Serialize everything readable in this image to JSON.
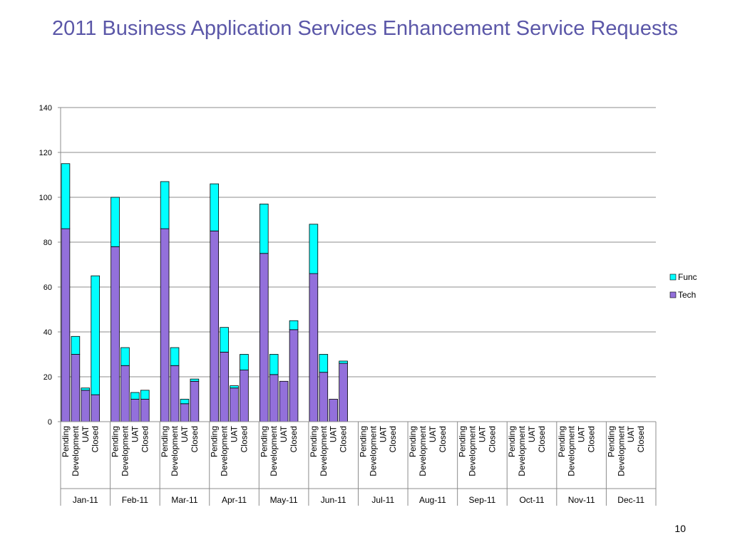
{
  "slide": {
    "title": "2011 Business Application Services Enhancement Service Requests",
    "page_number": "10"
  },
  "colors": {
    "func": "#00ffff",
    "tech": "#9370db"
  },
  "chart_data": {
    "type": "bar",
    "stacked": true,
    "title": "",
    "xlabel": "",
    "ylabel": "",
    "ylim": [
      0,
      140
    ],
    "yticks": [
      0,
      20,
      40,
      60,
      80,
      100,
      120,
      140
    ],
    "grid": true,
    "legend": "right",
    "group_categories": [
      "Jan-11",
      "Feb-11",
      "Mar-11",
      "Apr-11",
      "May-11",
      "Jun-11",
      "Jul-11",
      "Aug-11",
      "Sep-11",
      "Oct-11",
      "Nov-11",
      "Dec-11"
    ],
    "sub_categories": [
      "Pending",
      "Development",
      "UAT",
      "Closed"
    ],
    "series": [
      {
        "name": "Tech",
        "values": [
          [
            86,
            30,
            14,
            12
          ],
          [
            78,
            25,
            10,
            10
          ],
          [
            86,
            25,
            8,
            18
          ],
          [
            85,
            31,
            15,
            23
          ],
          [
            75,
            21,
            18,
            41
          ],
          [
            66,
            22,
            10,
            26
          ],
          [
            0,
            0,
            0,
            0
          ],
          [
            0,
            0,
            0,
            0
          ],
          [
            0,
            0,
            0,
            0
          ],
          [
            0,
            0,
            0,
            0
          ],
          [
            0,
            0,
            0,
            0
          ],
          [
            0,
            0,
            0,
            0
          ]
        ]
      },
      {
        "name": "Func",
        "values": [
          [
            29,
            8,
            1,
            53
          ],
          [
            22,
            8,
            3,
            4
          ],
          [
            21,
            8,
            2,
            1
          ],
          [
            21,
            11,
            1,
            7
          ],
          [
            22,
            9,
            0,
            4
          ],
          [
            22,
            8,
            0,
            1
          ],
          [
            0,
            0,
            0,
            0
          ],
          [
            0,
            0,
            0,
            0
          ],
          [
            0,
            0,
            0,
            0
          ],
          [
            0,
            0,
            0,
            0
          ],
          [
            0,
            0,
            0,
            0
          ],
          [
            0,
            0,
            0,
            0
          ]
        ]
      }
    ]
  }
}
